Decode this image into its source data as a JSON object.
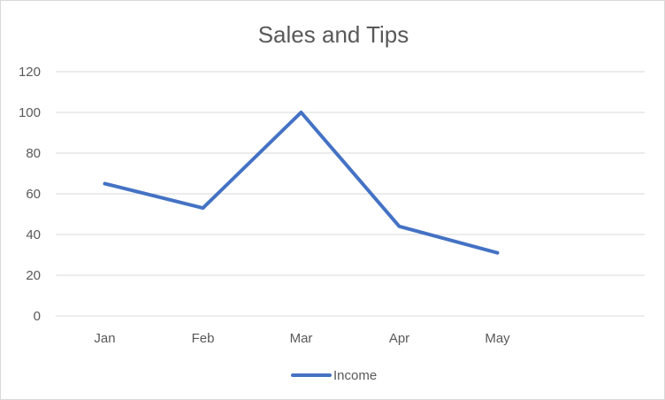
{
  "chart_data": {
    "type": "line",
    "title": "Sales and Tips",
    "xlabel": "",
    "ylabel": "",
    "categories": [
      "Jan",
      "Feb",
      "Mar",
      "Apr",
      "May"
    ],
    "extra_empty_category_slots": 1,
    "series": [
      {
        "name": "Income",
        "values": [
          65,
          53,
          100,
          44,
          31
        ],
        "color": "#4472C4"
      }
    ],
    "ylim": [
      0,
      120
    ],
    "yticks": [
      "0",
      "20",
      "40",
      "60",
      "80",
      "100",
      "120"
    ],
    "grid": true,
    "legend": "bottom"
  }
}
